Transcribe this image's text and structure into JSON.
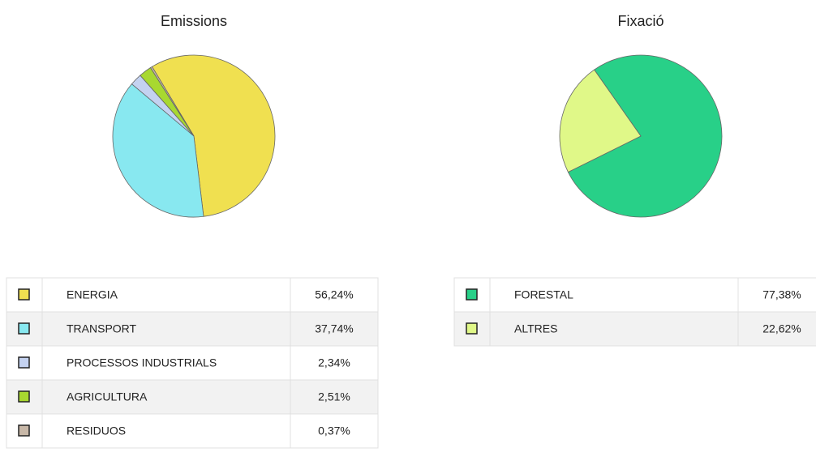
{
  "chart_data": [
    {
      "type": "pie",
      "title": "Emissions",
      "categories": [
        "ENERGIA",
        "TRANSPORT",
        "PROCESSOS INDUSTRIALS",
        "AGRICULTURA",
        "RESIDUOS"
      ],
      "values": [
        56.24,
        37.74,
        2.34,
        2.51,
        0.37
      ],
      "value_labels": [
        "56,24%",
        "37,74%",
        "2,34%",
        "2,51%",
        "0,37%"
      ],
      "colors": [
        "#f0e050",
        "#88e8f0",
        "#c4d2f0",
        "#a8d830",
        "#c8b8a8"
      ]
    },
    {
      "type": "pie",
      "title": "Fixació",
      "categories": [
        "FORESTAL",
        "ALTRES"
      ],
      "values": [
        77.38,
        22.62
      ],
      "value_labels": [
        "77,38%",
        "22,62%"
      ],
      "colors": [
        "#28d088",
        "#e0f888"
      ]
    }
  ]
}
